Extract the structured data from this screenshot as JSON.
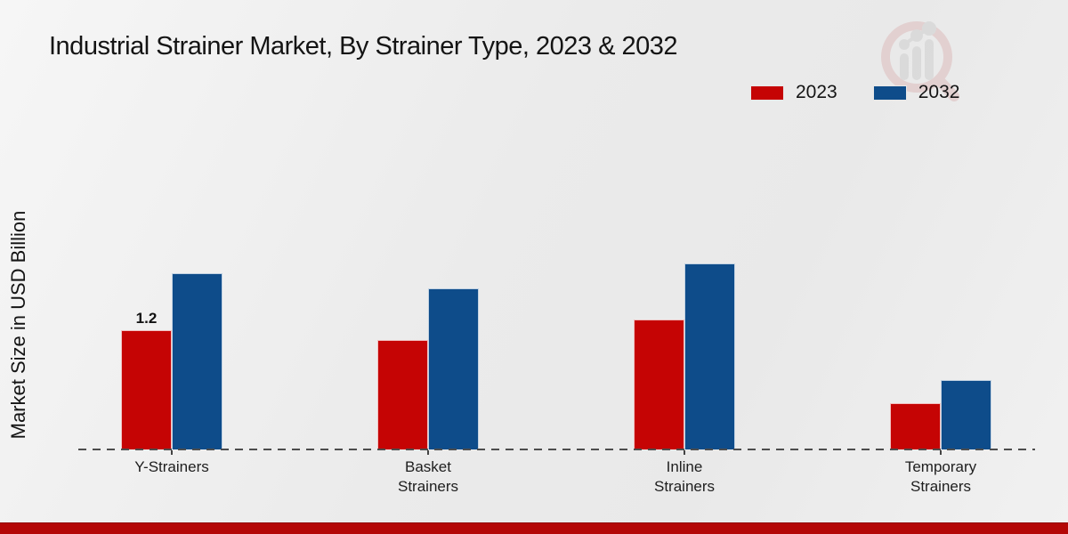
{
  "title": "Industrial Strainer Market, By Strainer Type, 2023 & 2032",
  "chart_data": {
    "type": "bar",
    "title": "Industrial Strainer Market, By Strainer Type, 2023 & 2032",
    "xlabel": "",
    "ylabel": "Market Size in USD Billion",
    "categories": [
      "Y-Strainers",
      "Basket Strainers",
      "Inline Strainers",
      "Temporary Strainers"
    ],
    "series": [
      {
        "name": "2023",
        "color": "#c50404",
        "values": [
          1.2,
          1.1,
          1.31,
          0.47
        ]
      },
      {
        "name": "2032",
        "color": "#0e4c8a",
        "values": [
          1.77,
          1.62,
          1.87,
          0.7
        ]
      }
    ],
    "annotations": [
      {
        "text": "1.2",
        "series_index": 0,
        "category_index": 0
      }
    ],
    "ylim": [
      0,
      2.4
    ],
    "grid": false,
    "axis_style": "dashed-baseline-only",
    "legend_position": "top-right"
  },
  "colors": {
    "series_2023": "#c50404",
    "series_2032": "#0e4c8a",
    "footer_bar": "#b40707",
    "background": "#ededed",
    "text": "#141414"
  },
  "watermark": {
    "name": "market-research-logo",
    "description": "magnifier with ascending bar chart"
  }
}
